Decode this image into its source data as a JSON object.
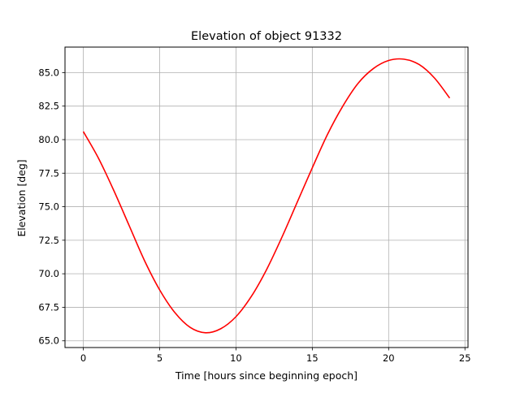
{
  "chart_data": {
    "type": "line",
    "title": "Elevation of object 91332",
    "xlabel": "Time [hours since beginning epoch]",
    "ylabel": "Elevation [deg]",
    "xlim": [
      -1.2,
      25.2
    ],
    "ylim": [
      64.5,
      86.9
    ],
    "xticks": [
      0,
      5,
      10,
      15,
      20,
      25
    ],
    "xtick_labels": [
      "0",
      "5",
      "10",
      "15",
      "20",
      "25"
    ],
    "yticks": [
      65.0,
      67.5,
      70.0,
      72.5,
      75.0,
      77.5,
      80.0,
      82.5,
      85.0
    ],
    "ytick_labels": [
      "65.0",
      "67.5",
      "70.0",
      "72.5",
      "75.0",
      "77.5",
      "80.0",
      "82.5",
      "85.0"
    ],
    "grid": true,
    "legend": "none",
    "series": [
      {
        "color": "#ff0000",
        "x": [
          0,
          1,
          2,
          3,
          4,
          5,
          6,
          7,
          8,
          9,
          10,
          11,
          12,
          13,
          14,
          15,
          16,
          17,
          18,
          19,
          20,
          21,
          22,
          23,
          24
        ],
        "y": [
          80.6,
          78.6,
          76.2,
          73.6,
          71.0,
          68.8,
          67.1,
          66.0,
          65.6,
          65.9,
          66.8,
          68.3,
          70.3,
          72.7,
          75.3,
          77.9,
          80.4,
          82.5,
          84.2,
          85.3,
          85.9,
          86.0,
          85.6,
          84.6,
          83.1
        ]
      }
    ]
  }
}
